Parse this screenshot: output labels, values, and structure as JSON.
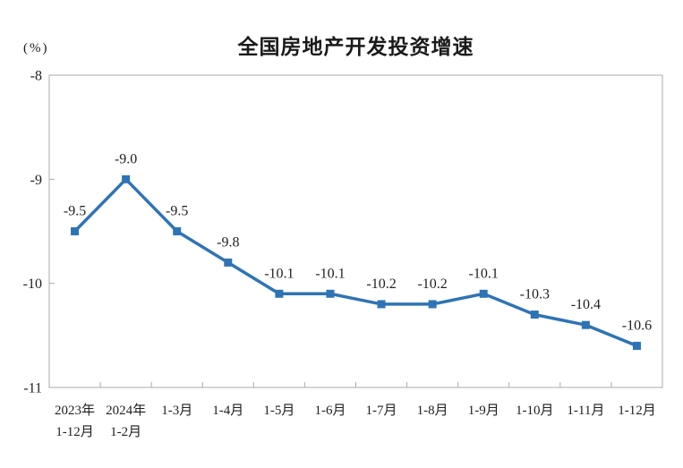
{
  "page": {
    "background_color": "#ffffff"
  },
  "chart_data": {
    "type": "line",
    "title": "全国房地产开发投资增速",
    "unit_label": "(%)",
    "categories": [
      [
        "2023年",
        "1-12月"
      ],
      [
        "2024年",
        "1-2月"
      ],
      [
        "1-3月"
      ],
      [
        "1-4月"
      ],
      [
        "1-5月"
      ],
      [
        "1-6月"
      ],
      [
        "1-7月"
      ],
      [
        "1-8月"
      ],
      [
        "1-9月"
      ],
      [
        "1-10月"
      ],
      [
        "1-11月"
      ],
      [
        "1-12月"
      ]
    ],
    "values": [
      -9.5,
      -9.0,
      -9.5,
      -9.8,
      -10.1,
      -10.1,
      -10.2,
      -10.2,
      -10.1,
      -10.3,
      -10.4,
      -10.6
    ],
    "point_labels": [
      "-9.5",
      "-9.0",
      "-9.5",
      "-9.8",
      "-10.1",
      "-10.1",
      "-10.2",
      "-10.2",
      "-10.1",
      "-10.3",
      "-10.4",
      "-10.6"
    ],
    "ylim": [
      -11,
      -8
    ],
    "yticks": [
      {
        "value": -8,
        "label": "-8"
      },
      {
        "value": -9,
        "label": "-9"
      },
      {
        "value": -10,
        "label": "-10"
      },
      {
        "value": -11,
        "label": "-11"
      }
    ],
    "grid": "off",
    "legend": "none",
    "marker": "square",
    "line_color": "#2E74B5",
    "axis_color": "#ABABAB",
    "label_text_color": "#1f1f1f"
  }
}
